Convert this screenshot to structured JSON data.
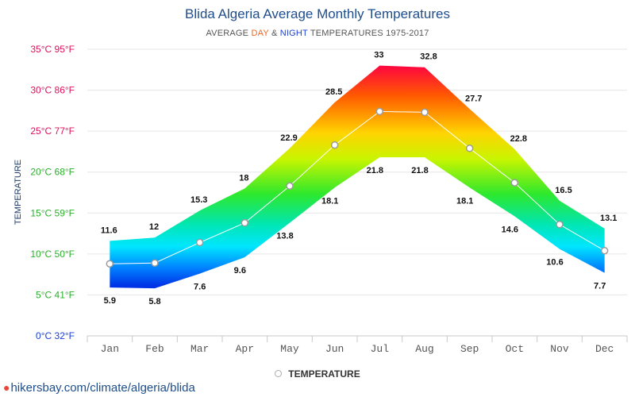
{
  "header": {
    "title": "Blida Algeria Average Monthly Temperatures",
    "subtitle_prefix": "AVERAGE ",
    "subtitle_day": "DAY",
    "subtitle_amp": " & ",
    "subtitle_night": "NIGHT",
    "subtitle_suffix": " TEMPERATURES 1975-2017"
  },
  "legend": {
    "label": "TEMPERATURE"
  },
  "footer": {
    "source": "hikersbay.com/climate/algeria/blida",
    "icon": "map-pin-icon"
  },
  "colors": {
    "title": "#1f4e8c",
    "day": "#f26522",
    "night": "#1a3fd6",
    "tick_hot": "#e0105a",
    "tick_warm": "#2ab02a",
    "tick_cold": "#1a3fd6",
    "grid": "#e6e6e6"
  },
  "chart_data": {
    "type": "area",
    "ylabel": "TEMPERATURE",
    "categories": [
      "Jan",
      "Feb",
      "Mar",
      "Apr",
      "May",
      "Jun",
      "Jul",
      "Aug",
      "Sep",
      "Oct",
      "Nov",
      "Dec"
    ],
    "ylim": [
      0,
      35
    ],
    "y_ticks": [
      {
        "value": 0,
        "label": "0°C 32°F"
      },
      {
        "value": 5,
        "label": "5°C 41°F"
      },
      {
        "value": 10,
        "label": "10°C 50°F"
      },
      {
        "value": 15,
        "label": "15°C 59°F"
      },
      {
        "value": 20,
        "label": "20°C 68°F"
      },
      {
        "value": 25,
        "label": "25°C 77°F"
      },
      {
        "value": 30,
        "label": "30°C 86°F"
      },
      {
        "value": 35,
        "label": "35°C 95°F"
      }
    ],
    "series": [
      {
        "name": "DAY",
        "values": [
          11.6,
          12,
          15.3,
          18,
          22.9,
          28.5,
          33,
          32.8,
          27.7,
          22.8,
          16.5,
          13.1
        ]
      },
      {
        "name": "NIGHT",
        "values": [
          5.9,
          5.8,
          7.6,
          9.6,
          13.8,
          18.1,
          21.8,
          21.8,
          18.1,
          14.6,
          10.6,
          7.7
        ]
      },
      {
        "name": "TEMPERATURE",
        "values": [
          8.8,
          8.9,
          11.4,
          13.8,
          18.3,
          23.3,
          27.4,
          27.3,
          22.9,
          18.7,
          13.6,
          10.4
        ]
      }
    ],
    "grid": true,
    "legend_position": "bottom-center"
  }
}
